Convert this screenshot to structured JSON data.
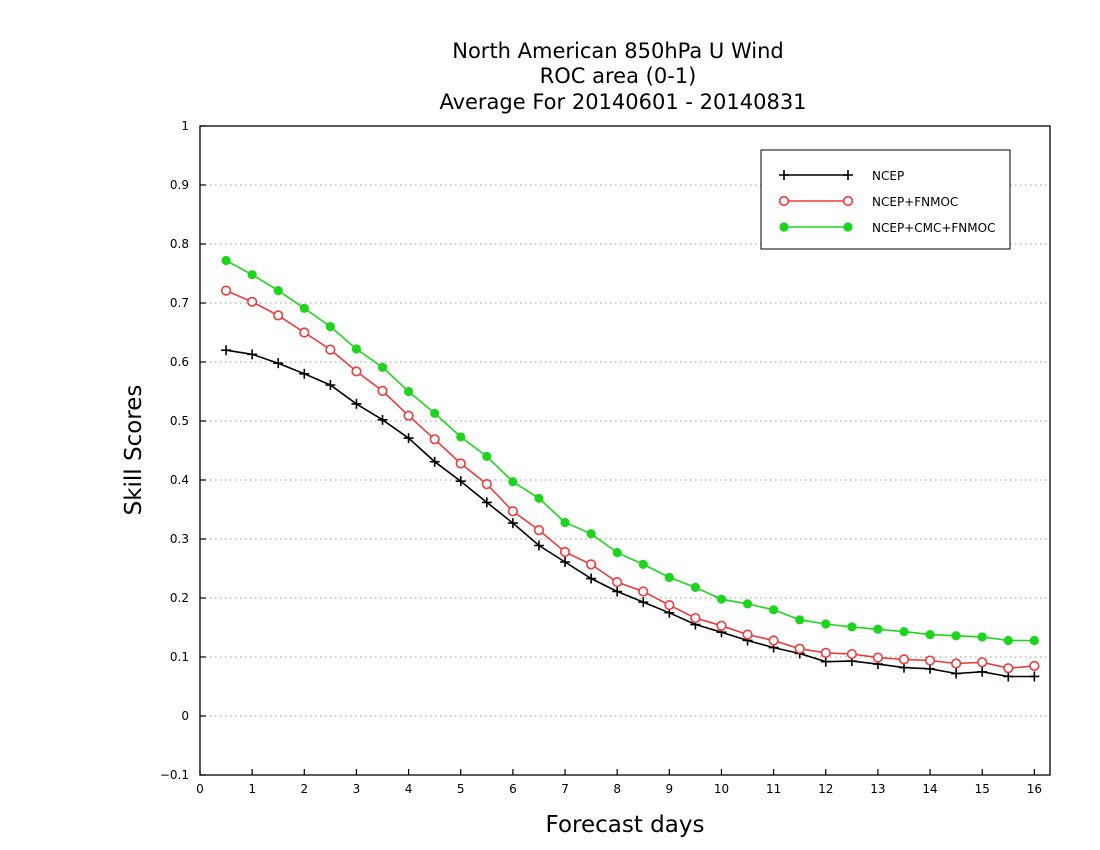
{
  "chart_data": {
    "type": "line",
    "title": [
      "North American 850hPa U Wind",
      "ROC area (0-1)",
      "Average For 20140601 - 20140831"
    ],
    "xlabel": "Forecast days",
    "ylabel": "Skill Scores",
    "xlim": [
      0,
      16.3
    ],
    "ylim": [
      -0.1,
      1
    ],
    "xticks": [
      "0",
      "1",
      "2",
      "3",
      "4",
      "5",
      "6",
      "7",
      "8",
      "9",
      "10",
      "11",
      "12",
      "13",
      "14",
      "15",
      "16"
    ],
    "yticks": [
      "-0.1",
      "0",
      "0.1",
      "0.2",
      "0.3",
      "0.4",
      "0.5",
      "0.6",
      "0.7",
      "0.8",
      "0.9",
      "1"
    ],
    "ygrid": true,
    "legend_position": "top-right",
    "x": [
      0.5,
      1,
      1.5,
      2,
      2.5,
      3,
      3.5,
      4,
      4.5,
      5,
      5.5,
      6,
      6.5,
      7,
      7.5,
      8,
      8.5,
      9,
      9.5,
      10,
      10.5,
      11,
      11.5,
      12,
      12.5,
      13,
      13.5,
      14,
      14.5,
      15,
      15.5,
      16
    ],
    "series": [
      {
        "name": "NCEP",
        "color": "#000000",
        "marker": "plus",
        "values": [
          0.62,
          0.613,
          0.598,
          0.58,
          0.561,
          0.529,
          0.502,
          0.471,
          0.431,
          0.398,
          0.362,
          0.327,
          0.289,
          0.261,
          0.233,
          0.211,
          0.193,
          0.175,
          0.155,
          0.142,
          0.128,
          0.116,
          0.106,
          0.092,
          0.093,
          0.088,
          0.082,
          0.08,
          0.072,
          0.075,
          0.067,
          0.067
        ]
      },
      {
        "name": "NCEP+FNMOC",
        "color": "#ee3a3a",
        "marker": "open-circle",
        "values": [
          0.721,
          0.702,
          0.679,
          0.65,
          0.621,
          0.584,
          0.551,
          0.509,
          0.469,
          0.428,
          0.393,
          0.347,
          0.315,
          0.278,
          0.257,
          0.227,
          0.211,
          0.188,
          0.166,
          0.153,
          0.138,
          0.128,
          0.114,
          0.107,
          0.105,
          0.099,
          0.096,
          0.094,
          0.089,
          0.091,
          0.081,
          0.085
        ]
      },
      {
        "name": "NCEP+CMC+FNMOC",
        "color": "#1ed51e",
        "marker": "filled-circle",
        "values": [
          0.772,
          0.748,
          0.721,
          0.691,
          0.66,
          0.622,
          0.591,
          0.55,
          0.513,
          0.473,
          0.44,
          0.397,
          0.369,
          0.328,
          0.309,
          0.277,
          0.257,
          0.235,
          0.218,
          0.198,
          0.19,
          0.18,
          0.163,
          0.156,
          0.151,
          0.147,
          0.143,
          0.138,
          0.136,
          0.134,
          0.128,
          0.128
        ]
      }
    ]
  }
}
